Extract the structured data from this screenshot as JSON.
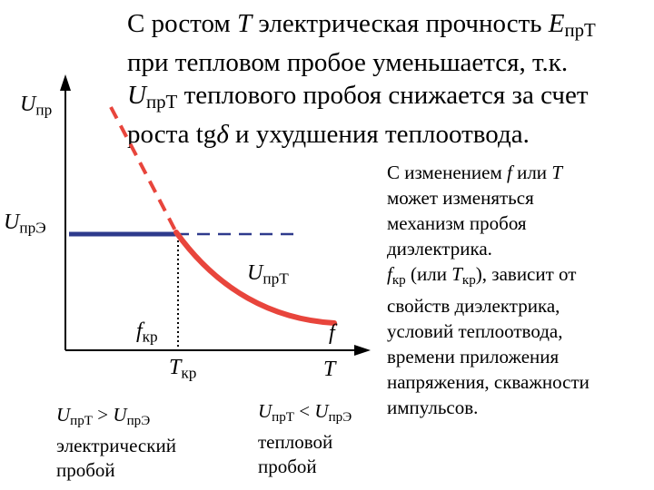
{
  "heading": {
    "line1_a": "С ростом ",
    "line1_T": "T",
    "line1_b": " электрическая прочность ",
    "line1_E": "E",
    "line1_sub": "прТ",
    "line2": "при тепловом пробое уменьшается, т.к.",
    "line3_U": "U",
    "line3_sub": "прТ",
    "line3_b": " теплового пробоя снижается за счет",
    "line4_a": "роста tg",
    "line4_delta": "δ",
    "line4_b": " и ухудшения теплоотвода."
  },
  "axis_labels": {
    "u_pr_U": "U",
    "u_pr_sub": "пр",
    "u_pre_U": "U",
    "u_pre_sub": "прЭ",
    "u_prt_U": "U",
    "u_prt_sub": "прТ",
    "fkr_f": "f",
    "fkr_sub": "кр",
    "tkr_T": "T",
    "tkr_sub": "кр",
    "axis_f": "f",
    "axis_T": "T"
  },
  "captions": {
    "electric_U1": "U",
    "electric_sub1": "прТ",
    "electric_op": " > ",
    "electric_U2": "U",
    "electric_sub2": "прЭ",
    "electric_l2": "электрический",
    "electric_l3": "пробой",
    "thermal_U1": "U",
    "thermal_sub1": "прТ",
    "thermal_op": " < ",
    "thermal_U2": "U",
    "thermal_sub2": "прЭ",
    "thermal_l2": "тепловой",
    "thermal_l3": "пробой"
  },
  "side_note": {
    "l1_a": "С изменением ",
    "l1_f": "f",
    "l1_b": " или ",
    "l1_T": "T",
    "l2": "может изменяться",
    "l3": "механизм пробоя",
    "l4": "диэлектрика.",
    "l5_f": "f",
    "l5_fsub": "кр",
    "l5_a": " (или ",
    "l5_T": "T",
    "l5_tsub": "кр",
    "l5_b": "), зависит от",
    "l6": "свойств диэлектрика,",
    "l7": "условий теплоотвода,",
    "l8": "времени приложения",
    "l9": "напряжения, скважности",
    "l10": "импульсов."
  },
  "colors": {
    "thermal_curve": "#e8453c",
    "electric_line": "#2e3a8c",
    "axes": "#000000"
  }
}
